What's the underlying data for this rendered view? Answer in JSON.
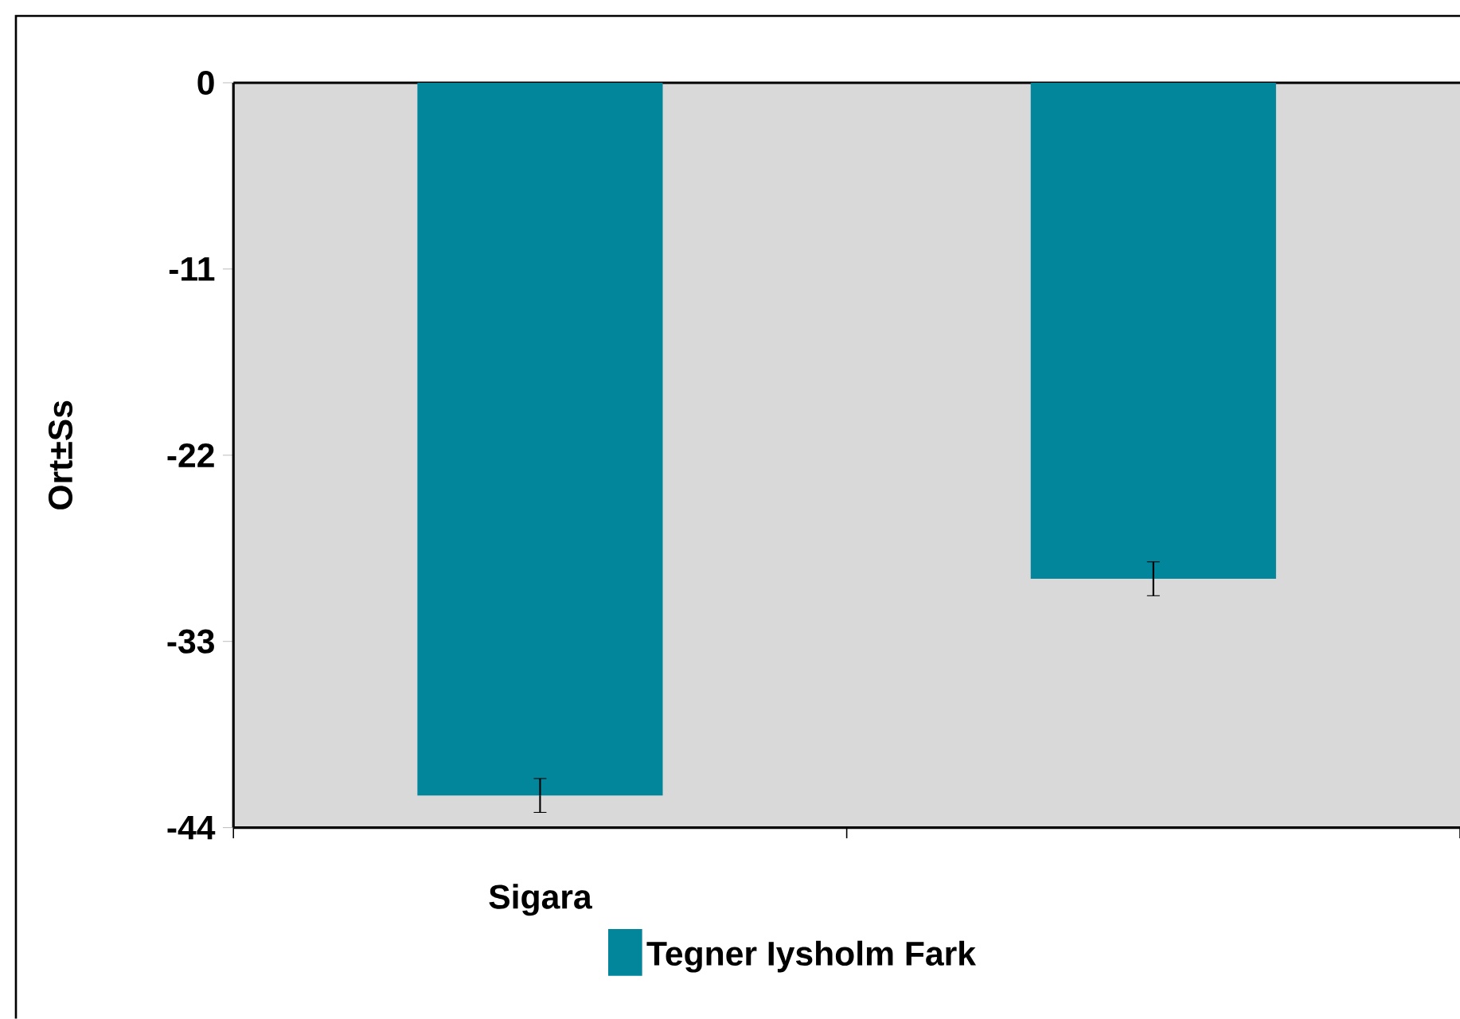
{
  "chart_data": {
    "type": "bar",
    "ylabel": "Ort±Ss",
    "categories": [
      "Sigara",
      null
    ],
    "series": [
      {
        "name": "Tegner Iysholm Fark",
        "color": "#02869c",
        "values": [
          -42.1,
          -29.3
        ],
        "errors": [
          1.0,
          1.0
        ]
      }
    ],
    "ylim": [
      -44,
      0
    ],
    "yticks": [
      0,
      -11,
      -22,
      -33,
      -44
    ],
    "legend": "bottom"
  }
}
